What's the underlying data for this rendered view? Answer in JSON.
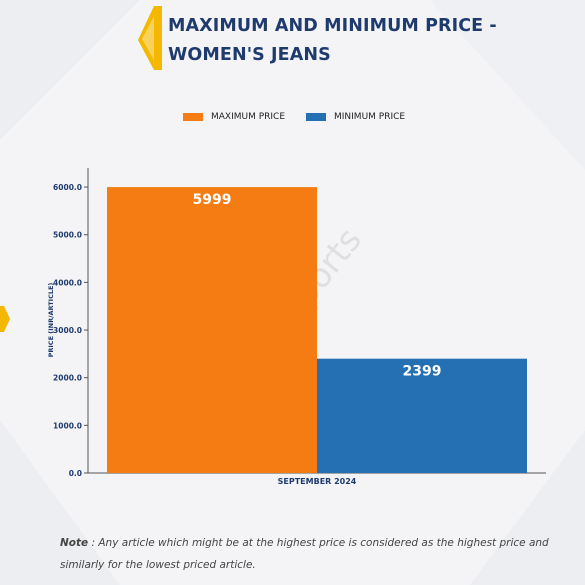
{
  "header": {
    "title_line1": "MAXIMUM AND MINIMUM PRICE -",
    "title_line2": "WOMEN'S JEANS"
  },
  "legend": [
    {
      "label": "MAXIMUM PRICE",
      "color": "#f47c12"
    },
    {
      "label": "MINIMUM PRICE",
      "color": "#2470b3"
    }
  ],
  "watermark": "D&J Reports",
  "chart_data": {
    "type": "bar",
    "categories": [
      "SEPTEMBER 2024"
    ],
    "series": [
      {
        "name": "MAXIMUM PRICE",
        "values": [
          5999
        ],
        "color": "#f47c12"
      },
      {
        "name": "MINIMUM PRICE",
        "values": [
          2399
        ],
        "color": "#2470b3"
      }
    ],
    "ylabel": "PRICE (INR/ARTICLE)",
    "xlabel": "",
    "ylim": [
      0,
      6400
    ],
    "yticks": [
      "0.0",
      "1000.0",
      "2000.0",
      "3000.0",
      "4000.0",
      "5000.0",
      "6000.0"
    ],
    "grid": false,
    "legend_position": "top"
  },
  "note": {
    "label": "Note",
    "text": " : Any article which might be at the highest price is considered as the highest price and similarly for the lowest priced article."
  }
}
